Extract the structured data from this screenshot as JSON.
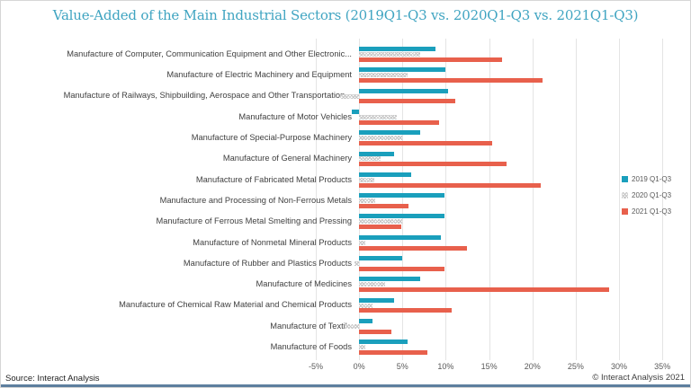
{
  "title": "Value-Added of the Main Industrial Sectors (2019Q1-Q3 vs. 2020Q1-Q3 vs. 2021Q1-Q3)",
  "source_note": "Source: Interact Analysis",
  "copyright": "© Interact Analysis 2021",
  "colors": {
    "teal": "#1A9FBC",
    "red": "#E8604C",
    "hatch_gray": "#C4C4C4",
    "title_teal": "#3FA4C1",
    "gridline": "#E4E4E4",
    "bottom_bar": "#5D7F9E"
  },
  "legend": {
    "items": [
      {
        "label": "2019 Q1-Q3",
        "swatch": "teal-square"
      },
      {
        "label": "2020 Q1-Q3",
        "swatch": "hatch-square"
      },
      {
        "label": "2021 Q1-Q3",
        "swatch": "red-square"
      }
    ]
  },
  "chart_data": {
    "type": "bar",
    "orientation": "horizontal",
    "title": "Value-Added of the Main Industrial Sectors (2019Q1-Q3 vs. 2020Q1-Q3 vs. 2021Q1-Q3)",
    "unit": "%",
    "xlim": [
      -5,
      35
    ],
    "grid": true,
    "legend_position": "right",
    "x_ticks": [
      {
        "value": -5,
        "label": "-5%"
      },
      {
        "value": 0,
        "label": "0%"
      },
      {
        "value": 5,
        "label": "5%"
      },
      {
        "value": 10,
        "label": "10%"
      },
      {
        "value": 15,
        "label": "15%"
      },
      {
        "value": 20,
        "label": "20%"
      },
      {
        "value": 25,
        "label": "25%"
      },
      {
        "value": 30,
        "label": "30%"
      },
      {
        "value": 35,
        "label": "35%"
      }
    ],
    "categories": [
      "Manufacture of Computer, Communication Equipment and Other Electronic...",
      "Manufacture of Electric Machinery and Equipment",
      "Manufacture of Railways, Shipbuilding, Aerospace and Other Transportation...",
      "Manufacture of Motor Vehicles",
      "Manufacture of Special-Purpose Machinery",
      "Manufacture of General Machinery",
      "Manufacture of Fabricated Metal Products",
      "Manufacture and Processing of Non-Ferrous Metals",
      "Manufacture of Ferrous Metal Smelting and Pressing",
      "Manufacture of Nonmetal Mineral Products",
      "Manufacture of Rubber and Plastics Products",
      "Manufacture of Medicines",
      "Manufacture of Chemical Raw Material and Chemical Products",
      "Manufacture of Textile",
      "Manufacture of Foods"
    ],
    "series": [
      {
        "name": "2019 Q1-Q3",
        "color": "#1A9FBC",
        "pattern": "solid",
        "values": [
          8.8,
          10.0,
          10.3,
          -0.8,
          7.0,
          4.0,
          6.0,
          9.8,
          9.8,
          9.4,
          5.0,
          7.0,
          4.0,
          1.5,
          5.6
        ]
      },
      {
        "name": "2020 Q1-Q3",
        "color": "#C4C4C4",
        "pattern": "hatch",
        "values": [
          7.0,
          5.6,
          -2.1,
          4.3,
          5.0,
          2.5,
          1.8,
          1.9,
          5.0,
          0.7,
          -0.5,
          3.0,
          1.5,
          -1.6,
          0.7
        ]
      },
      {
        "name": "2021 Q1-Q3",
        "color": "#E8604C",
        "pattern": "solid",
        "values": [
          16.5,
          21.2,
          11.1,
          9.2,
          15.4,
          17.0,
          21.0,
          5.7,
          4.9,
          12.4,
          9.9,
          28.9,
          10.7,
          3.7,
          7.9
        ]
      }
    ]
  }
}
